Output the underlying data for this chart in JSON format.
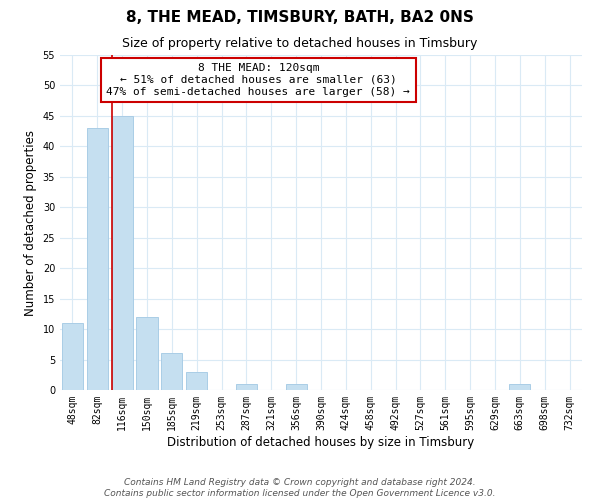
{
  "title": "8, THE MEAD, TIMSBURY, BATH, BA2 0NS",
  "subtitle": "Size of property relative to detached houses in Timsbury",
  "xlabel": "Distribution of detached houses by size in Timsbury",
  "ylabel": "Number of detached properties",
  "bar_labels": [
    "48sqm",
    "82sqm",
    "116sqm",
    "150sqm",
    "185sqm",
    "219sqm",
    "253sqm",
    "287sqm",
    "321sqm",
    "356sqm",
    "390sqm",
    "424sqm",
    "458sqm",
    "492sqm",
    "527sqm",
    "561sqm",
    "595sqm",
    "629sqm",
    "663sqm",
    "698sqm",
    "732sqm"
  ],
  "bar_values": [
    11,
    43,
    45,
    12,
    6,
    3,
    0,
    1,
    0,
    1,
    0,
    0,
    0,
    0,
    0,
    0,
    0,
    0,
    1,
    0,
    0
  ],
  "bar_color": "#c5dff0",
  "bar_edge_color": "#aacde6",
  "grid_color": "#daeaf5",
  "background_color": "#ffffff",
  "ylim": [
    0,
    55
  ],
  "yticks": [
    0,
    5,
    10,
    15,
    20,
    25,
    30,
    35,
    40,
    45,
    50,
    55
  ],
  "vline_color": "#cc0000",
  "annotation_title": "8 THE MEAD: 120sqm",
  "annotation_line1": "← 51% of detached houses are smaller (63)",
  "annotation_line2": "47% of semi-detached houses are larger (58) →",
  "annotation_box_color": "#ffffff",
  "annotation_box_edge": "#cc0000",
  "footer_line1": "Contains HM Land Registry data © Crown copyright and database right 2024.",
  "footer_line2": "Contains public sector information licensed under the Open Government Licence v3.0.",
  "title_fontsize": 11,
  "subtitle_fontsize": 9,
  "axis_label_fontsize": 8.5,
  "tick_fontsize": 7,
  "annotation_fontsize": 8,
  "footer_fontsize": 6.5
}
